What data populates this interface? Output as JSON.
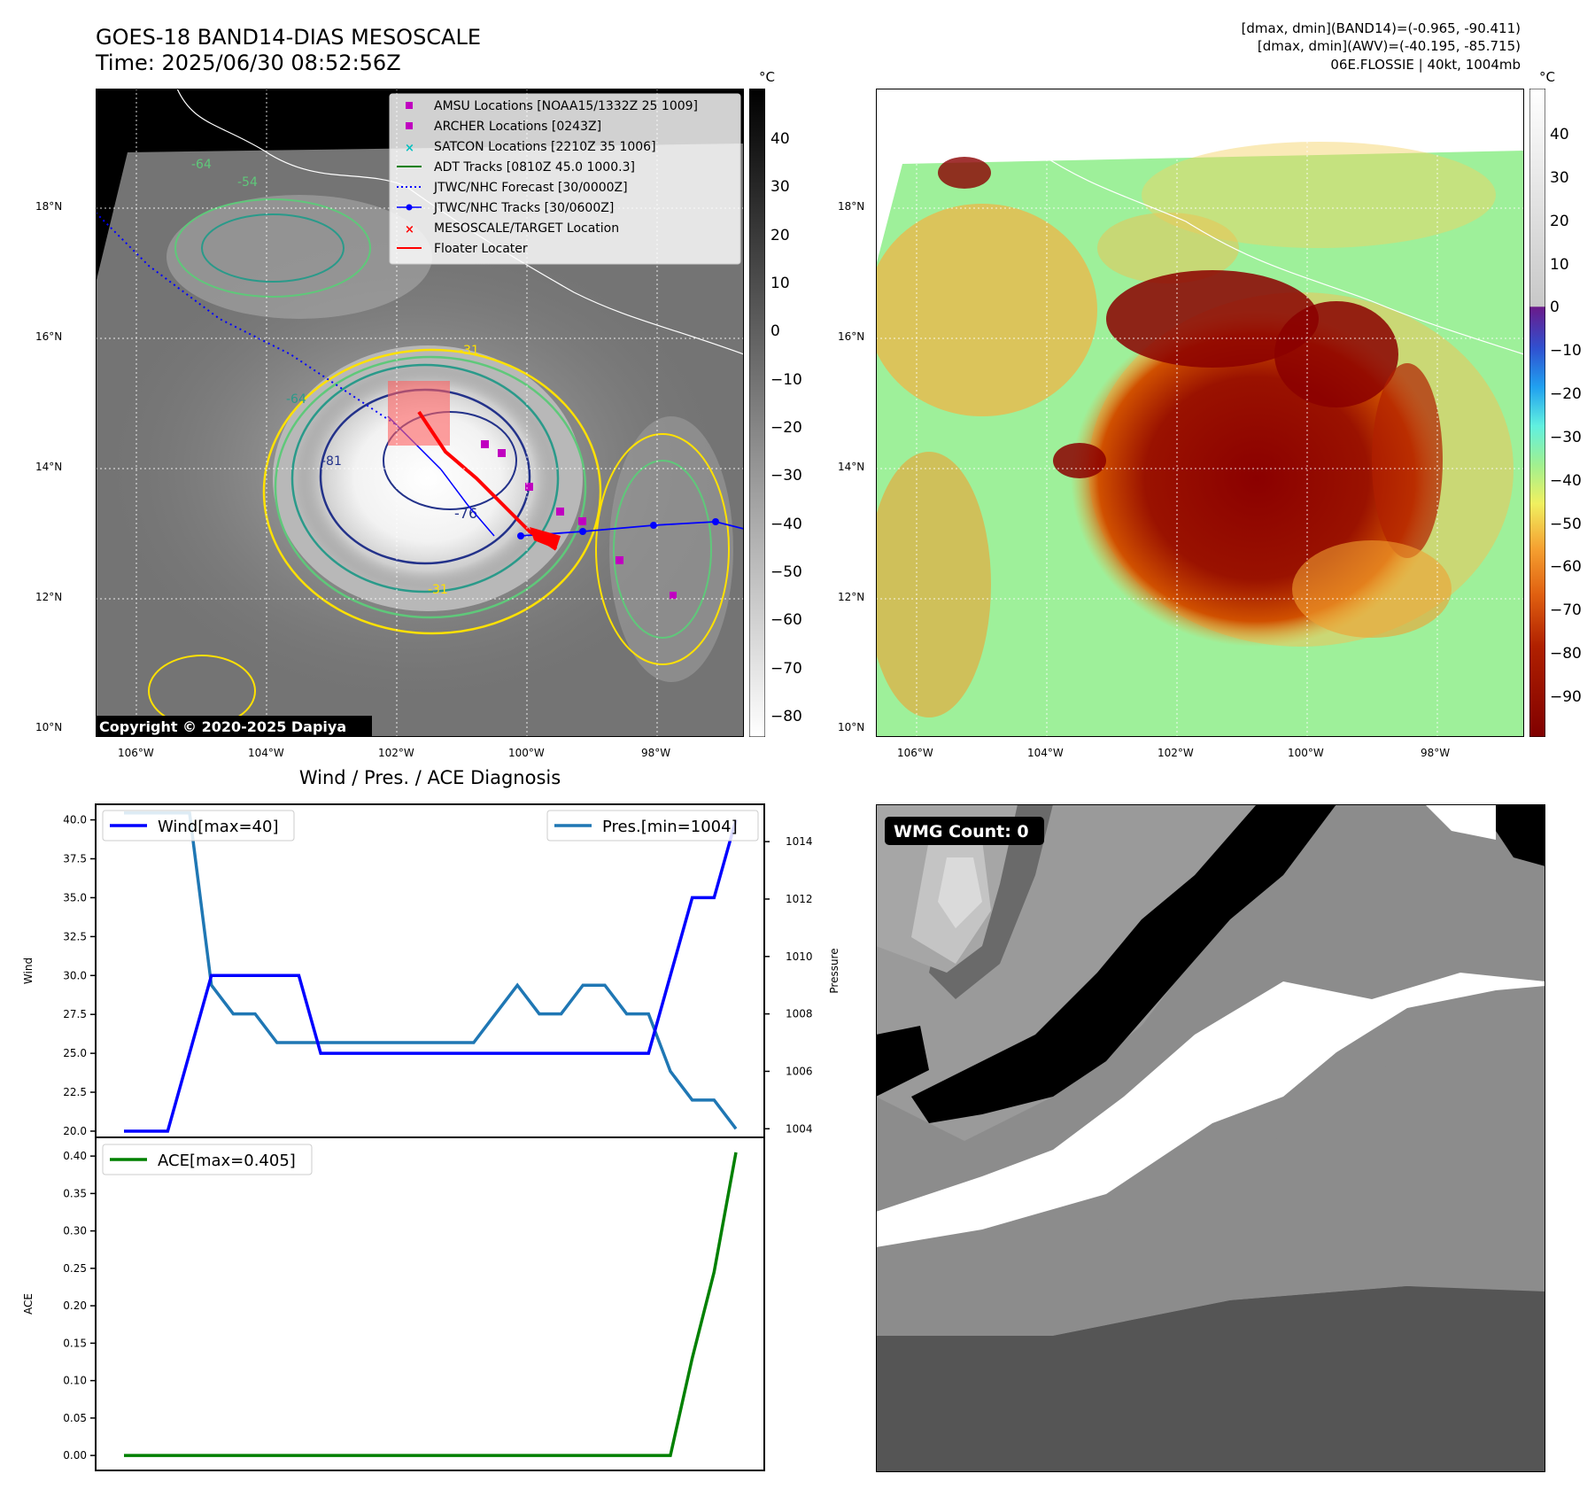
{
  "figure": {
    "title_line1": "GOES-18 BAND14-DIAS MESOSCALE",
    "title_line2": "Time: 2025/06/30 08:52:56Z",
    "info_line1": "[dmax, dmin](BAND14)=(-0.965, -90.411)",
    "info_line2": "[dmax, dmin](AWV)=(-40.195, -85.715)",
    "info_line3": "06E.FLOSSIE | 40kt, 1004mb",
    "copyright": "Copyright © 2020-2025 Dapiya",
    "diagnosis_title": "Wind / Pres. / ACE Diagnosis",
    "wmg_count": "WMG Count: 0"
  },
  "map": {
    "lon_ticks": [
      "106°W",
      "104°W",
      "102°W",
      "100°W",
      "98°W"
    ],
    "lat_ticks": [
      "18°N",
      "16°N",
      "14°N",
      "12°N",
      "10°N"
    ],
    "contour_labels": [
      "-64",
      "-64",
      "-54",
      "-81",
      "-76",
      "-31",
      "-31"
    ],
    "legend": [
      {
        "label": "AMSU Locations [NOAA15/1332Z 25 1009]",
        "marker": "square",
        "color": "#c000c0"
      },
      {
        "label": "ARCHER Locations [0243Z]",
        "marker": "square",
        "color": "#c000c0"
      },
      {
        "label": "SATCON Locations [2210Z 35 1006]",
        "marker": "x",
        "color": "#00c0c0"
      },
      {
        "label": "ADT Tracks [0810Z 45.0 1000.3]",
        "marker": "line",
        "color": "#008000"
      },
      {
        "label": "JTWC/NHC Forecast [30/0000Z]",
        "marker": "dotted",
        "color": "#0000ff"
      },
      {
        "label": "JTWC/NHC Tracks [30/0600Z]",
        "marker": "line-dot",
        "color": "#0000ff"
      },
      {
        "label": "MESOSCALE/TARGET Location",
        "marker": "x",
        "color": "#ff0000"
      },
      {
        "label": "Floater Locater",
        "marker": "line",
        "color": "#ff0000"
      }
    ]
  },
  "colorbar_ir": {
    "unit": "°C",
    "ticks": [
      "40",
      "30",
      "20",
      "10",
      "0",
      "−10",
      "−20",
      "−30",
      "−40",
      "−50",
      "−60",
      "−70",
      "−80"
    ]
  },
  "colorbar_wv": {
    "unit": "°C",
    "ticks": [
      "40",
      "30",
      "20",
      "10",
      "0",
      "−10",
      "−20",
      "−30",
      "−40",
      "−50",
      "−60",
      "−70",
      "−80",
      "−90"
    ]
  },
  "chart_data": [
    {
      "type": "line",
      "x": [
        0,
        1,
        2,
        3,
        4,
        5,
        6,
        7,
        8,
        9,
        10,
        11,
        12,
        13,
        14,
        15,
        16,
        17,
        18,
        19,
        20,
        21,
        22,
        23,
        24,
        25,
        26,
        27,
        28
      ],
      "series": [
        {
          "name": "Wind[max=40]",
          "axis": "left",
          "color": "#0000ff",
          "values": [
            20,
            20,
            20,
            25,
            30,
            30,
            30,
            30,
            30,
            25,
            25,
            25,
            25,
            25,
            25,
            25,
            25,
            25,
            25,
            25,
            25,
            25,
            25,
            25,
            25,
            30,
            35,
            35,
            40
          ]
        },
        {
          "name": "Pres.[min=1004]",
          "axis": "right",
          "color": "#1f77b4",
          "values": [
            1015,
            1015,
            1015,
            1015,
            1009,
            1008,
            1008,
            1007,
            1007,
            1007,
            1007,
            1007,
            1007,
            1007,
            1007,
            1007,
            1007,
            1008,
            1009,
            1008,
            1008,
            1009,
            1009,
            1008,
            1008,
            1006,
            1005,
            1005,
            1004
          ]
        }
      ],
      "ylabel": "Wind",
      "y2label": "Pressure",
      "ylim": [
        19.6,
        41
      ],
      "y2lim": [
        1003.7,
        1015.3
      ],
      "y_ticks": [
        "40.0",
        "37.5",
        "35.0",
        "32.5",
        "30.0",
        "27.5",
        "25.0",
        "22.5",
        "20.0"
      ],
      "y2_ticks": [
        "1014",
        "1012",
        "1010",
        "1008",
        "1006",
        "1004"
      ],
      "legend": [
        "upper-left",
        "upper-right"
      ]
    },
    {
      "type": "line",
      "x": [
        0,
        1,
        2,
        3,
        4,
        5,
        6,
        7,
        8,
        9,
        10,
        11,
        12,
        13,
        14,
        15,
        16,
        17,
        18,
        19,
        20,
        21,
        22,
        23,
        24,
        25,
        26,
        27,
        28
      ],
      "series": [
        {
          "name": "ACE[max=0.405]",
          "color": "#008000",
          "values": [
            0,
            0,
            0,
            0,
            0,
            0,
            0,
            0,
            0,
            0,
            0,
            0,
            0,
            0,
            0,
            0,
            0,
            0,
            0,
            0,
            0,
            0,
            0,
            0,
            0,
            0,
            0.13,
            0.245,
            0.405
          ]
        }
      ],
      "ylabel": "ACE",
      "ylim": [
        -0.02,
        0.425
      ],
      "y_ticks": [
        "0.40",
        "0.35",
        "0.30",
        "0.25",
        "0.20",
        "0.15",
        "0.10",
        "0.05",
        "0.00"
      ],
      "legend": "upper-left"
    }
  ]
}
